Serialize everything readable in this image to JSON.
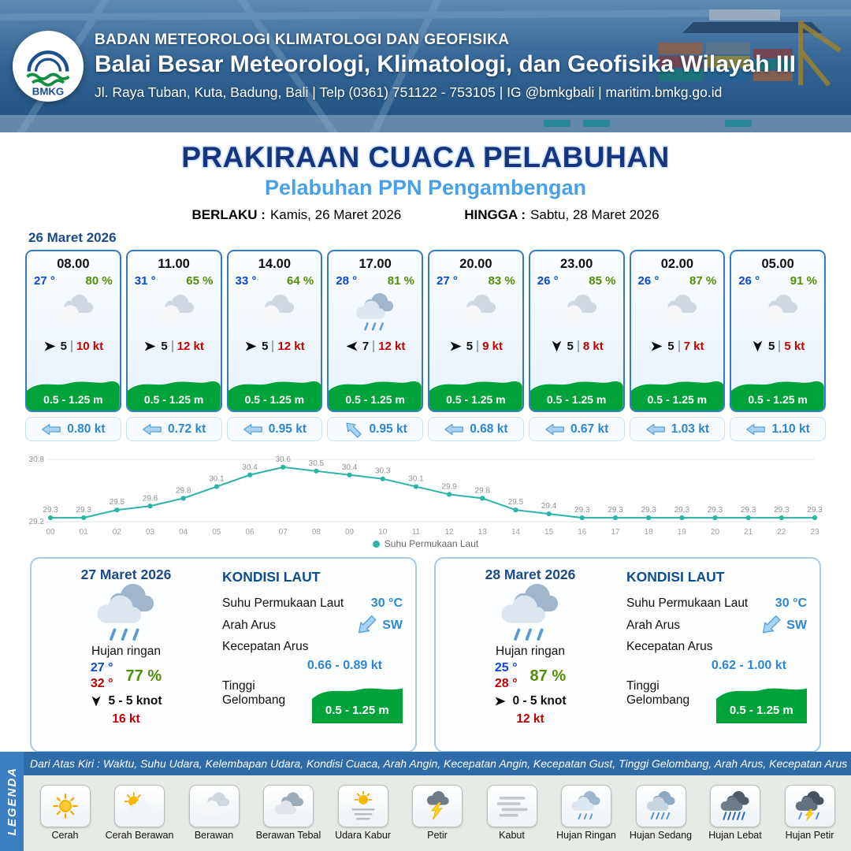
{
  "header": {
    "logo": "BMKG",
    "agency": "BADAN METEOROLOGI KLIMATOLOGI DAN GEOFISIKA",
    "office": "Balai Besar Meteorologi, Klimatologi, dan Geofisika Wilayah III",
    "address": "Jl. Raya Tuban, Kuta, Badung, Bali | Telp (0361) 751122 - 753105 | IG @bmkgbali | maritim.bmkg.go.id"
  },
  "title": {
    "main": "PRAKIRAAN CUACA PELABUHAN",
    "subtitle": "Pelabuhan PPN Pengambengan",
    "berlaku_label": "BERLAKU :",
    "berlaku_value": "Kamis, 26 Maret 2026",
    "hingga_label": "HINGGA :",
    "hingga_value": "Sabtu, 28 Maret 2026"
  },
  "forecast_date": "26 Maret 2026",
  "cards": [
    {
      "time": "08.00",
      "temp": "27 °",
      "humidity": "80 %",
      "icon": "berawan",
      "wind_dir": "E",
      "wind": "5",
      "gust": "10 kt",
      "wave": "0.5 - 1.25 m",
      "current_dir": "W",
      "current": "0.80 kt"
    },
    {
      "time": "11.00",
      "temp": "31 °",
      "humidity": "65 %",
      "icon": "berawan",
      "wind_dir": "E",
      "wind": "5",
      "gust": "12 kt",
      "wave": "0.5 - 1.25 m",
      "current_dir": "W",
      "current": "0.72 kt"
    },
    {
      "time": "14.00",
      "temp": "33 °",
      "humidity": "64 %",
      "icon": "berawan",
      "wind_dir": "E",
      "wind": "5",
      "gust": "12 kt",
      "wave": "0.5 - 1.25 m",
      "current_dir": "W",
      "current": "0.95 kt"
    },
    {
      "time": "17.00",
      "temp": "28 °",
      "humidity": "81 %",
      "icon": "hujan-ringan",
      "wind_dir": "W",
      "wind": "7",
      "gust": "12 kt",
      "wave": "0.5 - 1.25 m",
      "current_dir": "NW",
      "current": "0.95 kt"
    },
    {
      "time": "20.00",
      "temp": "27 °",
      "humidity": "83 %",
      "icon": "berawan",
      "wind_dir": "E",
      "wind": "5",
      "gust": "9 kt",
      "wave": "0.5 - 1.25 m",
      "current_dir": "W",
      "current": "0.68 kt"
    },
    {
      "time": "23.00",
      "temp": "26 °",
      "humidity": "85 %",
      "icon": "berawan",
      "wind_dir": "S",
      "wind": "5",
      "gust": "8 kt",
      "wave": "0.5 - 1.25 m",
      "current_dir": "W",
      "current": "0.67 kt"
    },
    {
      "time": "02.00",
      "temp": "26 °",
      "humidity": "87 %",
      "icon": "berawan",
      "wind_dir": "E",
      "wind": "5",
      "gust": "7 kt",
      "wave": "0.5 - 1.25 m",
      "current_dir": "W",
      "current": "1.03 kt"
    },
    {
      "time": "05.00",
      "temp": "26 °",
      "humidity": "91 %",
      "icon": "berawan",
      "wind_dir": "S",
      "wind": "5",
      "gust": "5 kt",
      "wave": "0.5 - 1.25 m",
      "current_dir": "W",
      "current": "1.10 kt"
    }
  ],
  "chart_data": {
    "type": "line",
    "title": "",
    "xlabel": "",
    "ylabel": "",
    "x": [
      "00",
      "01",
      "02",
      "03",
      "04",
      "05",
      "06",
      "07",
      "08",
      "09",
      "10",
      "11",
      "12",
      "13",
      "14",
      "15",
      "16",
      "17",
      "18",
      "19",
      "20",
      "21",
      "22",
      "23"
    ],
    "series": [
      {
        "name": "Suhu Permukaan Laut",
        "values": [
          29.3,
          29.3,
          29.5,
          29.6,
          29.8,
          30.1,
          30.4,
          30.6,
          30.5,
          30.4,
          30.3,
          30.1,
          29.9,
          29.8,
          29.5,
          29.4,
          29.3,
          29.3,
          29.3,
          29.3,
          29.3,
          29.3,
          29.3,
          29.3
        ]
      }
    ],
    "ylim": [
      29.2,
      30.8
    ],
    "line_color": "#2bb3a8",
    "legend_position": "bottom",
    "grid": false
  },
  "days": [
    {
      "date": "27 Maret 2026",
      "icon": "hujan-ringan",
      "condition": "Hujan ringan",
      "temp_min": "27 °",
      "temp_max": "32 °",
      "humidity": "77 %",
      "wind_dir": "S",
      "wind": "5  - 5 knot",
      "gust": "16 kt",
      "sea": {
        "title": "KONDISI LAUT",
        "sst_label": "Suhu Permukaan Laut",
        "sst_value": "30 °C",
        "arus_label": "Arah Arus",
        "arus_dir": "SW",
        "kecepatan_label": "Kecepatan Arus",
        "kecepatan_value": "0.66 - 0.89 kt",
        "gelombang_label": "Tinggi Gelombang",
        "gelombang_value": "0.5 - 1.25 m"
      }
    },
    {
      "date": "28 Maret 2026",
      "icon": "hujan-ringan",
      "condition": "Hujan ringan",
      "temp_min": "25 °",
      "temp_max": "28 °",
      "humidity": "87 %",
      "wind_dir": "E",
      "wind": "0  - 5 knot",
      "gust": "12 kt",
      "sea": {
        "title": "KONDISI LAUT",
        "sst_label": "Suhu Permukaan Laut",
        "sst_value": "30 °C",
        "arus_label": "Arah Arus",
        "arus_dir": "SW",
        "kecepatan_label": "Kecepatan Arus",
        "kecepatan_value": "0.62 - 1.00 kt",
        "gelombang_label": "Tinggi Gelombang",
        "gelombang_value": "0.5 - 1.25 m"
      }
    }
  ],
  "legend": {
    "band_label": "LEGENDA",
    "strip_text": "Dari Atas Kiri : Waktu, Suhu Udara, Kelembapan Udara, Kondisi Cuaca, Arah Angin, Kecepatan Angin, Kecepatan Gust, Tinggi Gelombang, Arah Arus, Kecepatan Arus",
    "items": [
      {
        "label": "Cerah",
        "icon": "cerah"
      },
      {
        "label": "Cerah Berawan",
        "icon": "cerah-berawan"
      },
      {
        "label": "Berawan",
        "icon": "berawan"
      },
      {
        "label": "Berawan Tebal",
        "icon": "berawan-tebal"
      },
      {
        "label": "Udara Kabur",
        "icon": "udara-kabur"
      },
      {
        "label": "Petir",
        "icon": "petir"
      },
      {
        "label": "Kabut",
        "icon": "kabut"
      },
      {
        "label": "Hujan Ringan",
        "icon": "hujan-ringan"
      },
      {
        "label": "Hujan Sedang",
        "icon": "hujan-sedang"
      },
      {
        "label": "Hujan Lebat",
        "icon": "hujan-lebat"
      },
      {
        "label": "Hujan Petir",
        "icon": "hujan-petir"
      }
    ]
  },
  "colors": {
    "header_blue": "#2f5f8f",
    "navy": "#17357e",
    "subtitle_blue": "#4aa0e8",
    "card_border": "#2f7ec7",
    "wave_green": "#00a33a",
    "temp_blue": "#0a46d8",
    "humidity_green": "#4e8f06",
    "gust_red": "#c00000",
    "current_blue": "#2e86d1",
    "chart_teal": "#2bb3a8",
    "legend_blue": "#2f6ba8"
  }
}
